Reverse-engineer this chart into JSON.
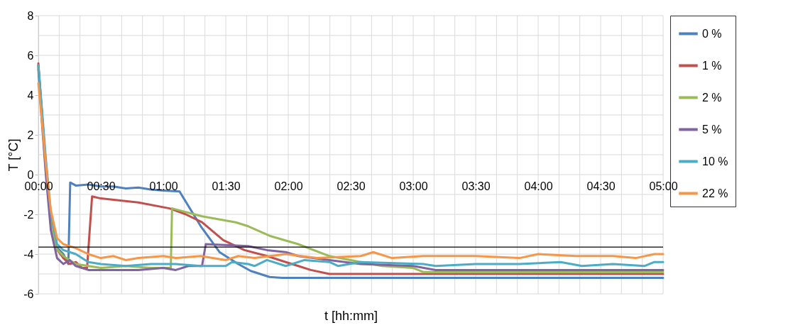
{
  "chart_data": {
    "type": "line",
    "xlabel": "t [hh:mm]",
    "ylabel": "T [°C]",
    "xlim": [
      0,
      5
    ],
    "ylim": [
      -6,
      8
    ],
    "xticks": [
      {
        "value": 0,
        "label": "00:00"
      },
      {
        "value": 0.1667,
        "label": null
      },
      {
        "value": 0.3333,
        "label": null
      },
      {
        "value": 0.5,
        "label": "00:30"
      },
      {
        "value": 0.6667,
        "label": null
      },
      {
        "value": 0.8333,
        "label": null
      },
      {
        "value": 1,
        "label": "01:00"
      },
      {
        "value": 1.1667,
        "label": null
      },
      {
        "value": 1.3333,
        "label": null
      },
      {
        "value": 1.5,
        "label": "01:30"
      },
      {
        "value": 1.6667,
        "label": null
      },
      {
        "value": 1.8333,
        "label": null
      },
      {
        "value": 2,
        "label": "02:00"
      },
      {
        "value": 2.1667,
        "label": null
      },
      {
        "value": 2.3333,
        "label": null
      },
      {
        "value": 2.5,
        "label": "02:30"
      },
      {
        "value": 2.6667,
        "label": null
      },
      {
        "value": 2.8333,
        "label": null
      },
      {
        "value": 3,
        "label": "03:00"
      },
      {
        "value": 3.1667,
        "label": null
      },
      {
        "value": 3.3333,
        "label": null
      },
      {
        "value": 3.5,
        "label": "03:30"
      },
      {
        "value": 3.6667,
        "label": null
      },
      {
        "value": 3.8333,
        "label": null
      },
      {
        "value": 4,
        "label": "04:00"
      },
      {
        "value": 4.1667,
        "label": null
      },
      {
        "value": 4.3333,
        "label": null
      },
      {
        "value": 4.5,
        "label": "04:30"
      },
      {
        "value": 4.6667,
        "label": null
      },
      {
        "value": 4.8333,
        "label": null
      },
      {
        "value": 5,
        "label": "05:00"
      }
    ],
    "yticks": [
      -6,
      {
        "value": -5,
        "label": null
      },
      -4,
      {
        "value": -3,
        "label": null
      },
      -2,
      {
        "value": -1,
        "label": null
      },
      0,
      {
        "value": 1,
        "label": null
      },
      2,
      {
        "value": 3,
        "label": null
      },
      4,
      {
        "value": 5,
        "label": null
      },
      6,
      {
        "value": 7,
        "label": null
      },
      8
    ],
    "grid": true,
    "legend": "right",
    "ref_lines": [
      {
        "axis": "y",
        "value": -3.65,
        "color": "#000000"
      }
    ],
    "series": [
      {
        "name": "0 %",
        "color": "#4f81bd",
        "x": [
          0,
          0.03,
          0.06,
          0.1,
          0.14,
          0.2,
          0.24,
          0.255,
          0.3,
          0.4,
          0.5,
          0.6,
          0.7,
          0.8,
          0.9,
          1.0,
          1.13,
          1.3,
          1.45,
          1.6,
          1.7,
          1.85,
          1.95,
          3,
          4,
          5
        ],
        "values": [
          5.5,
          3,
          0.5,
          -2.2,
          -3.6,
          -4.0,
          -4.5,
          -0.4,
          -0.55,
          -0.5,
          -0.6,
          -0.6,
          -0.7,
          -0.65,
          -0.75,
          -0.8,
          -0.85,
          -2.6,
          -3.9,
          -4.5,
          -4.85,
          -5.15,
          -5.2,
          -5.2,
          -5.2,
          -5.2
        ]
      },
      {
        "name": "1 %",
        "color": "#c0504d",
        "x": [
          0,
          0.03,
          0.06,
          0.1,
          0.14,
          0.2,
          0.25,
          0.3,
          0.35,
          0.39,
          0.43,
          0.5,
          0.8,
          1.05,
          1.18,
          1.31,
          1.48,
          1.65,
          1.83,
          1.98,
          2.08,
          2.18,
          2.33,
          3,
          4,
          5
        ],
        "values": [
          5.6,
          3,
          0.3,
          -2.3,
          -3.7,
          -4.2,
          -4.5,
          -4.4,
          -4.7,
          -4.7,
          -1.1,
          -1.2,
          -1.4,
          -1.7,
          -2.0,
          -2.4,
          -3.3,
          -3.8,
          -4.1,
          -4.4,
          -4.6,
          -4.8,
          -5.0,
          -5.0,
          -5.0,
          -5.0
        ]
      },
      {
        "name": "2 %",
        "color": "#9bbb59",
        "x": [
          0,
          0.03,
          0.06,
          0.1,
          0.14,
          0.2,
          0.3,
          0.5,
          0.7,
          0.9,
          1.06,
          1.07,
          1.31,
          1.58,
          1.68,
          1.86,
          2.08,
          2.33,
          2.58,
          2.75,
          3.0,
          3.08,
          4,
          5
        ],
        "values": [
          5.4,
          2.8,
          0.2,
          -2.4,
          -3.7,
          -4.1,
          -4.5,
          -4.7,
          -4.6,
          -4.7,
          -4.7,
          -1.7,
          -2.1,
          -2.4,
          -2.6,
          -3.1,
          -3.5,
          -4.1,
          -4.4,
          -4.6,
          -4.7,
          -4.9,
          -4.9,
          -4.9
        ]
      },
      {
        "name": "5 %",
        "color": "#8064a2",
        "x": [
          0,
          0.03,
          0.06,
          0.1,
          0.15,
          0.2,
          0.25,
          0.3,
          0.4,
          0.6,
          0.8,
          1.0,
          1.1,
          1.2,
          1.31,
          1.34,
          1.68,
          1.83,
          1.98,
          2.08,
          2.33,
          2.58,
          3.0,
          3.18,
          4,
          5
        ],
        "values": [
          5.3,
          2.5,
          0,
          -2.8,
          -4.2,
          -4.5,
          -4.3,
          -4.6,
          -4.8,
          -4.8,
          -4.8,
          -4.7,
          -4.8,
          -4.6,
          -4.6,
          -3.5,
          -3.6,
          -3.8,
          -3.9,
          -4.1,
          -4.3,
          -4.5,
          -4.6,
          -4.8,
          -4.8,
          -4.8
        ]
      },
      {
        "name": "10 %",
        "color": "#4bacc6",
        "x": [
          0,
          0.03,
          0.06,
          0.1,
          0.15,
          0.2,
          0.3,
          0.4,
          0.5,
          0.7,
          0.9,
          1.1,
          1.3,
          1.5,
          1.55,
          1.68,
          1.73,
          1.83,
          1.98,
          2.13,
          2.33,
          2.4,
          2.58,
          3.08,
          3.18,
          3.5,
          3.85,
          4.18,
          4.35,
          4.6,
          4.85,
          4.93,
          5
        ],
        "values": [
          5.5,
          3.2,
          0.8,
          -1.9,
          -3.5,
          -3.8,
          -4.0,
          -4.4,
          -4.5,
          -4.6,
          -4.5,
          -4.5,
          -4.6,
          -4.6,
          -4.4,
          -4.5,
          -4.6,
          -4.3,
          -4.6,
          -4.3,
          -4.4,
          -4.6,
          -4.4,
          -4.5,
          -4.6,
          -4.5,
          -4.5,
          -4.4,
          -4.6,
          -4.5,
          -4.6,
          -4.4,
          -4.4
        ]
      },
      {
        "name": "22 %",
        "color": "#f79646",
        "x": [
          0,
          0.03,
          0.06,
          0.1,
          0.15,
          0.2,
          0.3,
          0.4,
          0.5,
          0.6,
          0.7,
          0.8,
          1.0,
          1.1,
          1.3,
          1.5,
          1.6,
          1.73,
          1.98,
          2.23,
          2.58,
          2.68,
          2.83,
          3.08,
          3.5,
          3.85,
          4.0,
          4.3,
          4.6,
          4.78,
          4.93,
          5
        ],
        "values": [
          4.6,
          2.6,
          0.5,
          -1.8,
          -3.2,
          -3.5,
          -3.7,
          -4.0,
          -4.2,
          -4.1,
          -4.3,
          -4.2,
          -4.1,
          -4.2,
          -4.1,
          -4.3,
          -4.1,
          -4.2,
          -4.0,
          -4.2,
          -4.1,
          -3.9,
          -4.2,
          -4.1,
          -4.1,
          -4.2,
          -4.0,
          -4.1,
          -4.1,
          -4.2,
          -4.0,
          -4.0
        ]
      }
    ]
  }
}
